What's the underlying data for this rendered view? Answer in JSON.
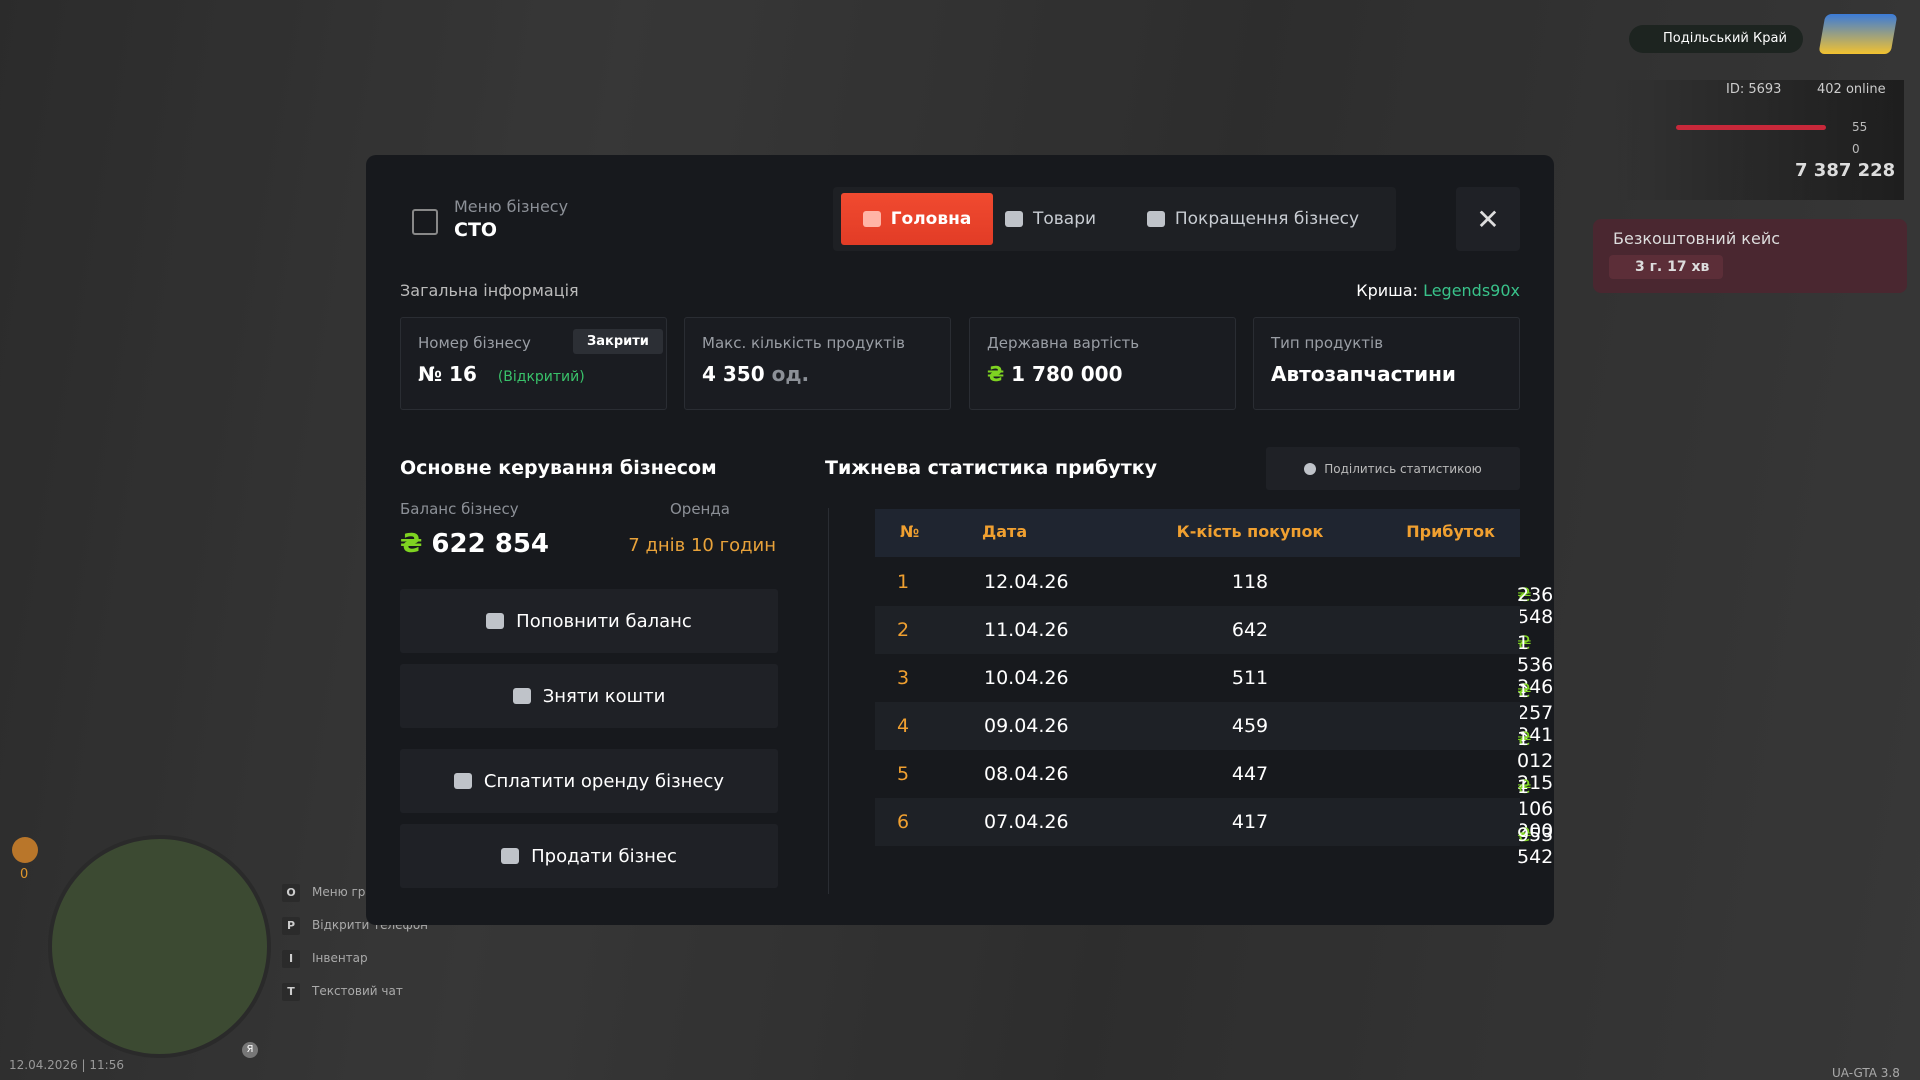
{
  "hud": {
    "region": "Подільський Край",
    "player_id": "ID: 5693",
    "online": "402 online",
    "health": "55",
    "armor": "0",
    "money": "7 387 228",
    "case_title": "Безкоштовний кейс",
    "case_timer": "3 г. 17 хв",
    "minimap_count": "0",
    "mic_key": "Я",
    "hotkeys": [
      {
        "key": "O",
        "label": "Меню гр"
      },
      {
        "key": "P",
        "label": "Відкрити телефон"
      },
      {
        "key": "I",
        "label": "Інвентар"
      },
      {
        "key": "T",
        "label": "Текстовий чат"
      }
    ],
    "datetime": "12.04.2026 | 11:56",
    "version": "UA-GTA 3.8"
  },
  "modal": {
    "subtitle": "Меню бізнесу",
    "title": "СТО",
    "tabs": [
      "Головна",
      "Товари",
      "Покращення бізнесу"
    ],
    "currency": "₴",
    "general_title": "Загальна інформація",
    "roof_label": "Криша:",
    "roof_value": "Legends90x",
    "cards": [
      {
        "label": "Номер бізнесу",
        "value": "№ 16",
        "status": "(Відкритий)",
        "button": "Закрити"
      },
      {
        "label": "Макс. кількість продуктів",
        "value": "4 350",
        "unit": "од."
      },
      {
        "label": "Державна вартість",
        "value": "1 780 000"
      },
      {
        "label": "Тип продуктів",
        "value": "Автозапчастини"
      }
    ],
    "management_title": "Основне керування бізнесом",
    "balance_label": "Баланс бізнесу",
    "balance_value": "622 854",
    "rent_label": "Оренда",
    "rent_value": "7 днів 10 годин",
    "actions": [
      "Поповнити баланс",
      "Зняти кошти",
      "Сплатити оренду бізнесу",
      "Продати бізнес"
    ],
    "stats_title": "Тижнева статистика прибутку",
    "share_button": "Поділитись статистикою",
    "columns": [
      "№",
      "Дата",
      "К-кість покупок",
      "Прибуток"
    ],
    "rows": [
      [
        "1",
        "12.04.26",
        "118",
        "236 548"
      ],
      [
        "2",
        "11.04.26",
        "642",
        "1 536 346"
      ],
      [
        "3",
        "10.04.26",
        "511",
        "1 257 341"
      ],
      [
        "4",
        "09.04.26",
        "459",
        "1 012 215"
      ],
      [
        "5",
        "08.04.26",
        "447",
        "1 106 200"
      ],
      [
        "6",
        "07.04.26",
        "417",
        "953 542"
      ]
    ]
  }
}
